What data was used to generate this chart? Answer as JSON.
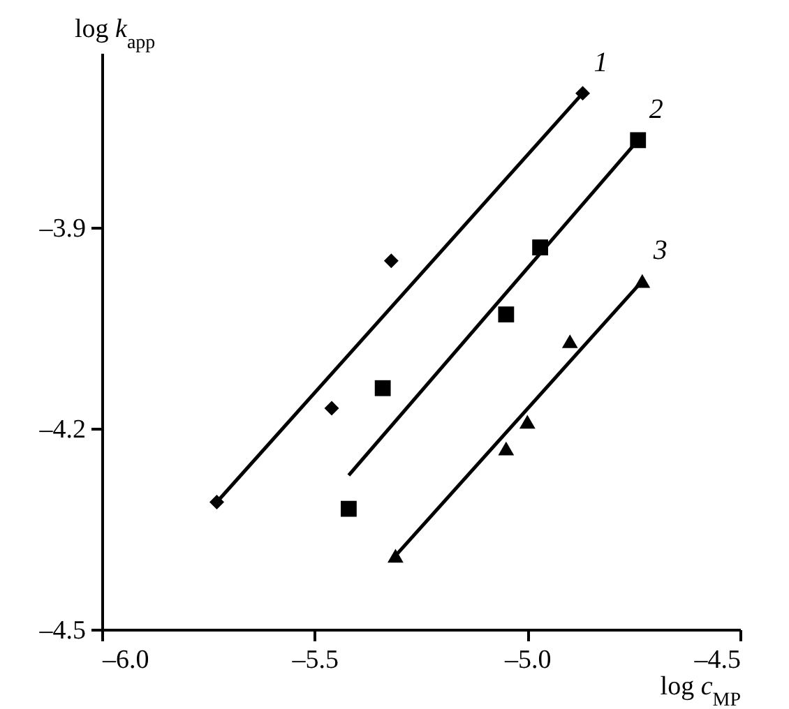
{
  "chart_data": {
    "type": "scatter",
    "xlabel": "log c$_{MP}$",
    "ylabel": "log k$_{app}$",
    "xlim": [
      -6.0,
      -4.5
    ],
    "ylim": [
      -4.5,
      -3.64
    ],
    "xticks": [
      {
        "value": -6.0,
        "label": "–6.0"
      },
      {
        "value": -5.5,
        "label": "–5.5"
      },
      {
        "value": -5.0,
        "label": "–5.0"
      },
      {
        "value": -4.5,
        "label": "–4.5"
      }
    ],
    "yticks": [
      {
        "value": -4.5,
        "label": "–4.5"
      },
      {
        "value": -4.2,
        "label": "–4.2"
      },
      {
        "value": -3.9,
        "label": "–3.9"
      }
    ],
    "grid": false,
    "series": [
      {
        "marker": "diamond",
        "color": "#000000",
        "x": [
          -5.73,
          -5.46,
          -5.32,
          -4.87
        ],
        "values": [
          -4.31,
          -4.17,
          -3.95,
          -3.7
        ]
      },
      {
        "marker": "square",
        "color": "#000000",
        "x": [
          -5.42,
          -5.34,
          -5.05,
          -4.97,
          -4.74
        ],
        "values": [
          -4.32,
          -4.14,
          -4.03,
          -3.93,
          -3.77
        ]
      },
      {
        "marker": "triangle",
        "color": "#000000",
        "x": [
          -5.31,
          -5.05,
          -5.0,
          -4.9,
          -4.73
        ],
        "values": [
          -4.39,
          -4.23,
          -4.19,
          -4.07,
          -3.98
        ]
      },
      {
        "type": "line",
        "name": "1",
        "color": "#000000",
        "line_style": "solid",
        "x": [
          -5.73,
          -4.87
        ],
        "values": [
          -4.31,
          -3.7
        ]
      },
      {
        "type": "line",
        "name": "2",
        "color": "#000000",
        "line_style": "solid",
        "x": [
          -5.42,
          -4.74
        ],
        "values": [
          -4.27,
          -3.77
        ]
      },
      {
        "type": "line",
        "name": "3",
        "color": "#000000",
        "line_style": "solid",
        "x": [
          -5.31,
          -4.73
        ],
        "values": [
          -4.39,
          -3.98
        ]
      }
    ]
  }
}
